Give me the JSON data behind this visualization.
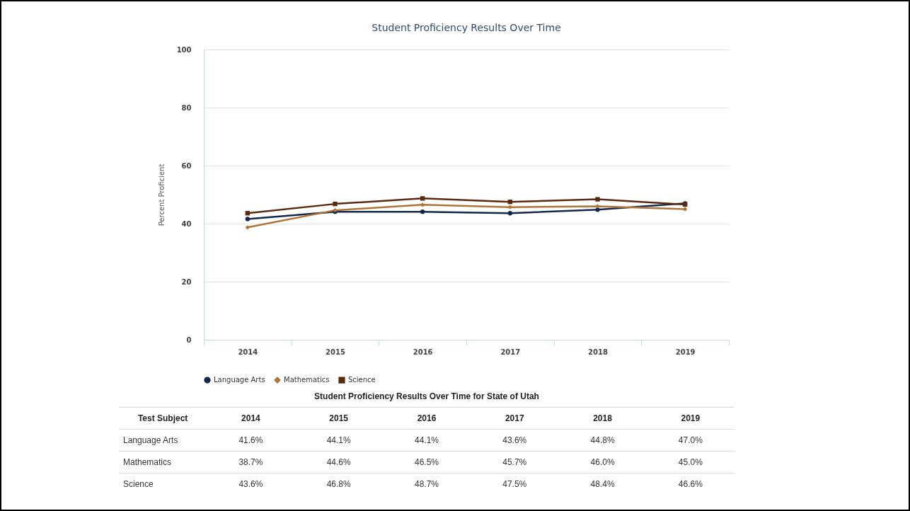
{
  "chart_data": {
    "type": "line",
    "title": "Student Proficiency Results Over Time",
    "ylabel": "Percent Proficient",
    "categories": [
      "2014",
      "2015",
      "2016",
      "2017",
      "2018",
      "2019"
    ],
    "series": [
      {
        "name": "Language Arts",
        "color": "#14284b",
        "marker": "circle",
        "values": [
          41.6,
          44.1,
          44.1,
          43.6,
          44.8,
          47.0
        ],
        "value_labels": [
          "41.6%",
          "44.1%",
          "44.1%",
          "43.6%",
          "44.8%",
          "47.0%"
        ]
      },
      {
        "name": "Mathematics",
        "color": "#b0743a",
        "marker": "diamond",
        "values": [
          38.7,
          44.6,
          46.5,
          45.7,
          46.0,
          45.0
        ],
        "value_labels": [
          "38.7%",
          "44.6%",
          "46.5%",
          "45.7%",
          "46.0%",
          "45.0%"
        ]
      },
      {
        "name": "Science",
        "color": "#5a2a0e",
        "marker": "square",
        "values": [
          43.6,
          46.8,
          48.7,
          47.5,
          48.4,
          46.6
        ],
        "value_labels": [
          "43.6%",
          "46.8%",
          "48.7%",
          "47.5%",
          "48.4%",
          "46.6%"
        ]
      }
    ],
    "ylim": [
      0,
      100
    ],
    "yticks": [
      0,
      20,
      40,
      60,
      80,
      100
    ],
    "grid": "y",
    "legend": "bottom",
    "annotations": [
      "Student Proficiency Results Over Time for State of Utah",
      "Test Subject"
    ]
  }
}
